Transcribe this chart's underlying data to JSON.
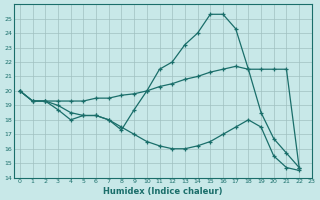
{
  "xlabel": "Humidex (Indice chaleur)",
  "xlim": [
    -0.5,
    23
  ],
  "ylim": [
    14,
    26
  ],
  "yticks": [
    14,
    15,
    16,
    17,
    18,
    19,
    20,
    21,
    22,
    23,
    24,
    25
  ],
  "xticks": [
    0,
    1,
    2,
    3,
    4,
    5,
    6,
    7,
    8,
    9,
    10,
    11,
    12,
    13,
    14,
    15,
    16,
    17,
    18,
    19,
    20,
    21,
    22,
    23
  ],
  "bg_color": "#c8e8e8",
  "grid_color": "#a0c0c0",
  "line_color": "#1a6e6a",
  "line1_y": [
    20,
    19.3,
    19.3,
    18.7,
    18.0,
    18.3,
    18.3,
    18.0,
    17.3,
    18.7,
    20.0,
    21.5,
    22.0,
    23.2,
    24.0,
    25.3,
    25.3,
    24.3,
    21.5,
    18.5,
    16.7,
    15.7,
    14.7
  ],
  "line2_y": [
    20,
    19.3,
    19.3,
    19.3,
    19.3,
    19.3,
    19.5,
    19.5,
    19.7,
    19.8,
    20.0,
    20.3,
    20.5,
    20.8,
    21.0,
    21.3,
    21.5,
    21.7,
    21.5,
    21.5,
    21.5,
    21.5,
    14.7
  ],
  "line3_y": [
    20,
    19.3,
    19.3,
    19.0,
    18.5,
    18.3,
    18.3,
    18.0,
    17.5,
    17.0,
    16.5,
    16.2,
    16.0,
    16.0,
    16.2,
    16.5,
    17.0,
    17.5,
    18.0,
    17.5,
    15.5,
    14.7,
    14.5
  ]
}
